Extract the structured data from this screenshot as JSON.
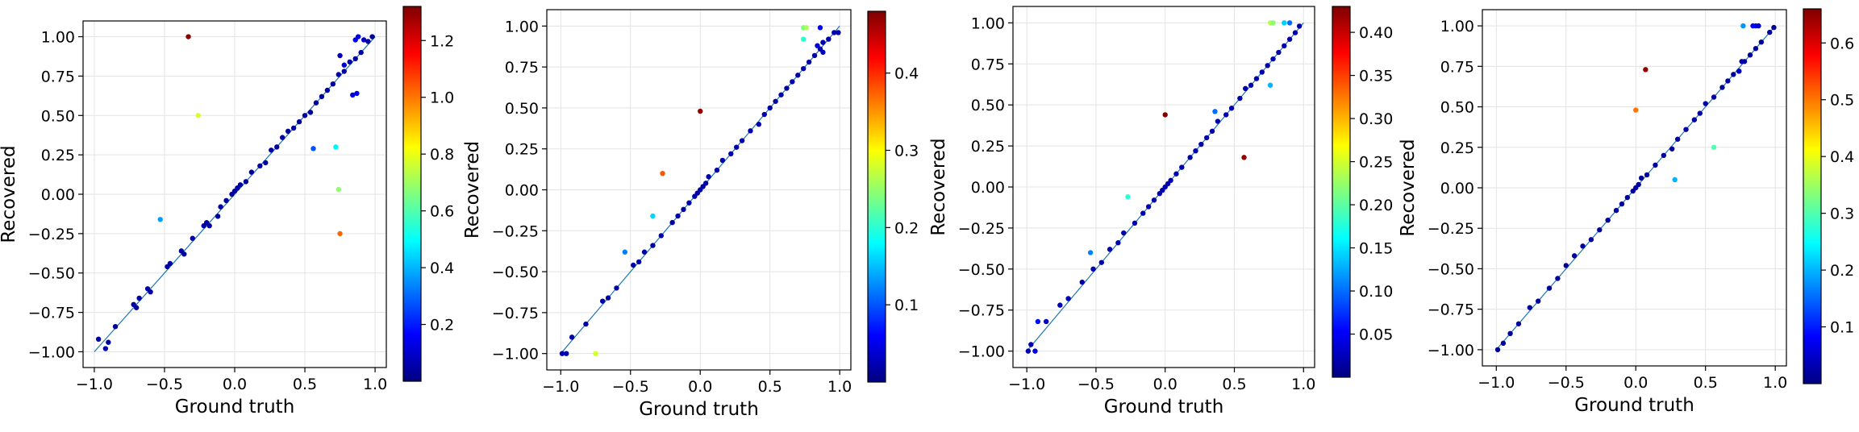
{
  "colormap": [
    "#00007f",
    "#0000ff",
    "#007fff",
    "#00ffff",
    "#7fff7f",
    "#ffff00",
    "#ff7f00",
    "#ff0000",
    "#7f0000"
  ],
  "diagonal_color": "#1f77b4",
  "chart_data": [
    {
      "type": "scatter",
      "xlabel": "Ground truth",
      "ylabel": "Recovered",
      "xlim": [
        -1.08,
        1.08
      ],
      "ylim": [
        -1.1,
        1.1
      ],
      "xticks": [
        -1.0,
        -0.5,
        0.0,
        0.5,
        1.0
      ],
      "yticks": [
        -1.0,
        -0.75,
        -0.5,
        -0.25,
        0.0,
        0.25,
        0.5,
        0.75,
        1.0
      ],
      "xtick_labels": [
        "−1.0",
        "−0.5",
        "0.0",
        "0.5",
        "1.0"
      ],
      "ytick_labels": [
        "−1.00",
        "−0.75",
        "−0.50",
        "−0.25",
        "0.00",
        "0.25",
        "0.50",
        "0.75",
        "1.00"
      ],
      "colorbar": {
        "range": [
          0.0,
          1.32
        ],
        "ticks": [
          0.2,
          0.4,
          0.6,
          0.8,
          1.0,
          1.2
        ],
        "tick_labels": [
          "0.2",
          "0.4",
          "0.6",
          "0.8",
          "1.0",
          "1.2"
        ]
      },
      "points": [
        [
          -0.97,
          -0.92,
          0.05
        ],
        [
          -0.92,
          -0.98,
          0.06
        ],
        [
          -0.9,
          -0.94,
          0.04
        ],
        [
          -0.85,
          -0.84,
          0.05
        ],
        [
          -0.72,
          -0.7,
          0.05
        ],
        [
          -0.7,
          -0.72,
          0.04
        ],
        [
          -0.68,
          -0.66,
          0.05
        ],
        [
          -0.62,
          -0.6,
          0.06
        ],
        [
          -0.6,
          -0.62,
          0.04
        ],
        [
          -0.48,
          -0.46,
          0.05
        ],
        [
          -0.46,
          -0.44,
          0.04
        ],
        [
          -0.38,
          -0.36,
          0.05
        ],
        [
          -0.36,
          -0.38,
          0.04
        ],
        [
          -0.3,
          -0.28,
          0.05
        ],
        [
          -0.22,
          -0.2,
          0.05
        ],
        [
          -0.2,
          -0.18,
          0.04
        ],
        [
          -0.18,
          -0.2,
          0.05
        ],
        [
          -0.12,
          -0.14,
          0.04
        ],
        [
          -0.1,
          -0.08,
          0.05
        ],
        [
          -0.06,
          -0.04,
          0.04
        ],
        [
          -0.02,
          0.0,
          0.05
        ],
        [
          0.0,
          0.02,
          0.04
        ],
        [
          0.02,
          0.04,
          0.05
        ],
        [
          0.04,
          0.06,
          0.04
        ],
        [
          0.08,
          0.08,
          0.05
        ],
        [
          0.12,
          0.14,
          0.04
        ],
        [
          0.18,
          0.18,
          0.05
        ],
        [
          0.22,
          0.2,
          0.04
        ],
        [
          0.26,
          0.28,
          0.05
        ],
        [
          0.3,
          0.3,
          0.04
        ],
        [
          0.34,
          0.36,
          0.05
        ],
        [
          0.38,
          0.4,
          0.04
        ],
        [
          0.42,
          0.42,
          0.05
        ],
        [
          0.46,
          0.46,
          0.04
        ],
        [
          0.5,
          0.5,
          0.05
        ],
        [
          0.54,
          0.52,
          0.04
        ],
        [
          0.58,
          0.58,
          0.05
        ],
        [
          0.62,
          0.62,
          0.04
        ],
        [
          0.66,
          0.66,
          0.05
        ],
        [
          0.7,
          0.7,
          0.04
        ],
        [
          0.74,
          0.76,
          0.05
        ],
        [
          0.78,
          0.78,
          0.04
        ],
        [
          0.82,
          0.84,
          0.05
        ],
        [
          0.86,
          0.86,
          0.04
        ],
        [
          0.9,
          0.9,
          0.05
        ],
        [
          0.86,
          0.98,
          0.15
        ],
        [
          0.88,
          1.0,
          0.12
        ],
        [
          0.92,
          0.98,
          0.1
        ],
        [
          0.95,
          0.97,
          0.05
        ],
        [
          0.98,
          1.0,
          0.04
        ],
        [
          0.75,
          0.88,
          0.08
        ],
        [
          0.78,
          0.82,
          0.1
        ],
        [
          0.84,
          0.63,
          0.12
        ],
        [
          0.87,
          0.64,
          0.13
        ],
        [
          0.56,
          0.29,
          0.27
        ],
        [
          0.72,
          0.3,
          0.48
        ],
        [
          0.74,
          0.03,
          0.68
        ],
        [
          0.75,
          -0.25,
          1.02
        ],
        [
          -0.53,
          -0.16,
          0.37
        ],
        [
          -0.26,
          0.5,
          0.77
        ],
        [
          -0.33,
          1.0,
          1.3
        ]
      ]
    },
    {
      "type": "scatter",
      "xlabel": "Ground truth",
      "ylabel": "Recovered",
      "xlim": [
        -1.1,
        1.08
      ],
      "ylim": [
        -1.1,
        1.1
      ],
      "xticks": [
        -1.0,
        -0.5,
        0.0,
        0.5,
        1.0
      ],
      "yticks": [
        -1.0,
        -0.75,
        -0.5,
        -0.25,
        0.0,
        0.25,
        0.5,
        0.75,
        1.0
      ],
      "xtick_labels": [
        "−1.0",
        "−0.5",
        "0.0",
        "0.5",
        "1.0"
      ],
      "ytick_labels": [
        "−1.00",
        "−0.75",
        "−0.50",
        "−0.25",
        "0.00",
        "0.25",
        "0.50",
        "0.75",
        "1.00"
      ],
      "colorbar": {
        "range": [
          0.0,
          0.48
        ],
        "ticks": [
          0.1,
          0.2,
          0.3,
          0.4
        ],
        "tick_labels": [
          "0.1",
          "0.2",
          "0.3",
          "0.4"
        ]
      },
      "points": [
        [
          -0.99,
          -1.0,
          0.02
        ],
        [
          -0.96,
          -1.0,
          0.02
        ],
        [
          -0.92,
          -0.9,
          0.02
        ],
        [
          -0.82,
          -0.82,
          0.02
        ],
        [
          -0.7,
          -0.68,
          0.02
        ],
        [
          -0.66,
          -0.66,
          0.02
        ],
        [
          -0.6,
          -0.6,
          0.02
        ],
        [
          -0.48,
          -0.46,
          0.02
        ],
        [
          -0.44,
          -0.44,
          0.02
        ],
        [
          -0.4,
          -0.38,
          0.02
        ],
        [
          -0.34,
          -0.34,
          0.02
        ],
        [
          -0.28,
          -0.28,
          0.02
        ],
        [
          -0.2,
          -0.2,
          0.02
        ],
        [
          -0.16,
          -0.16,
          0.02
        ],
        [
          -0.12,
          -0.12,
          0.02
        ],
        [
          -0.08,
          -0.08,
          0.02
        ],
        [
          -0.04,
          -0.04,
          0.02
        ],
        [
          -0.02,
          -0.02,
          0.02
        ],
        [
          0.0,
          0.0,
          0.02
        ],
        [
          0.02,
          0.02,
          0.02
        ],
        [
          0.04,
          0.04,
          0.02
        ],
        [
          0.06,
          0.08,
          0.02
        ],
        [
          0.12,
          0.12,
          0.02
        ],
        [
          0.16,
          0.18,
          0.02
        ],
        [
          0.22,
          0.22,
          0.02
        ],
        [
          0.26,
          0.26,
          0.02
        ],
        [
          0.3,
          0.3,
          0.02
        ],
        [
          0.36,
          0.36,
          0.02
        ],
        [
          0.42,
          0.4,
          0.02
        ],
        [
          0.46,
          0.46,
          0.02
        ],
        [
          0.5,
          0.5,
          0.02
        ],
        [
          0.54,
          0.54,
          0.02
        ],
        [
          0.58,
          0.58,
          0.02
        ],
        [
          0.62,
          0.62,
          0.02
        ],
        [
          0.66,
          0.66,
          0.02
        ],
        [
          0.7,
          0.7,
          0.02
        ],
        [
          0.74,
          0.74,
          0.02
        ],
        [
          0.78,
          0.78,
          0.02
        ],
        [
          0.82,
          0.82,
          0.02
        ],
        [
          0.86,
          0.86,
          0.02
        ],
        [
          0.88,
          0.9,
          0.02
        ],
        [
          0.92,
          0.92,
          0.02
        ],
        [
          0.96,
          0.96,
          0.02
        ],
        [
          0.99,
          0.96,
          0.02
        ],
        [
          0.84,
          0.88,
          0.04
        ],
        [
          0.88,
          0.84,
          0.03
        ],
        [
          0.74,
          0.92,
          0.2
        ],
        [
          0.74,
          0.99,
          0.24
        ],
        [
          0.76,
          0.99,
          0.26
        ],
        [
          0.86,
          0.99,
          0.05
        ],
        [
          -0.54,
          -0.38,
          0.12
        ],
        [
          -0.34,
          -0.16,
          0.16
        ],
        [
          -0.27,
          0.1,
          0.38
        ],
        [
          -0.75,
          -1.0,
          0.28
        ],
        [
          0.0,
          0.48,
          0.47
        ]
      ]
    },
    {
      "type": "scatter",
      "xlabel": "Ground truth",
      "ylabel": "Recovered",
      "xlim": [
        -1.1,
        1.08
      ],
      "ylim": [
        -1.1,
        1.1
      ],
      "xticks": [
        -1.0,
        -0.5,
        0.0,
        0.5,
        1.0
      ],
      "yticks": [
        -1.0,
        -0.75,
        -0.5,
        -0.25,
        0.0,
        0.25,
        0.5,
        0.75,
        1.0
      ],
      "xtick_labels": [
        "−1.0",
        "−0.5",
        "0.0",
        "0.5",
        "1.0"
      ],
      "ytick_labels": [
        "−1.00",
        "−0.75",
        "−0.50",
        "−0.25",
        "0.00",
        "0.25",
        "0.50",
        "0.75",
        "1.00"
      ],
      "colorbar": {
        "range": [
          0.0,
          0.43
        ],
        "ticks": [
          0.05,
          0.1,
          0.15,
          0.2,
          0.25,
          0.3,
          0.35,
          0.4
        ],
        "tick_labels": [
          "0.05",
          "0.10",
          "0.15",
          "0.20",
          "0.25",
          "0.30",
          "0.35",
          "0.40"
        ]
      },
      "points": [
        [
          -0.99,
          -1.0,
          0.02
        ],
        [
          -0.97,
          -0.96,
          0.02
        ],
        [
          -0.94,
          -1.0,
          0.04
        ],
        [
          -0.92,
          -0.82,
          0.06
        ],
        [
          -0.86,
          -0.82,
          0.03
        ],
        [
          -0.76,
          -0.72,
          0.02
        ],
        [
          -0.7,
          -0.68,
          0.02
        ],
        [
          -0.6,
          -0.58,
          0.02
        ],
        [
          -0.52,
          -0.5,
          0.02
        ],
        [
          -0.46,
          -0.46,
          0.02
        ],
        [
          -0.4,
          -0.38,
          0.02
        ],
        [
          -0.34,
          -0.34,
          0.02
        ],
        [
          -0.3,
          -0.28,
          0.02
        ],
        [
          -0.22,
          -0.22,
          0.02
        ],
        [
          -0.16,
          -0.16,
          0.02
        ],
        [
          -0.12,
          -0.12,
          0.02
        ],
        [
          -0.08,
          -0.08,
          0.02
        ],
        [
          -0.04,
          -0.04,
          0.02
        ],
        [
          -0.02,
          -0.02,
          0.02
        ],
        [
          0.0,
          0.0,
          0.02
        ],
        [
          0.02,
          0.02,
          0.02
        ],
        [
          0.04,
          0.04,
          0.02
        ],
        [
          0.08,
          0.08,
          0.02
        ],
        [
          0.12,
          0.12,
          0.02
        ],
        [
          0.18,
          0.18,
          0.02
        ],
        [
          0.22,
          0.22,
          0.02
        ],
        [
          0.26,
          0.26,
          0.02
        ],
        [
          0.3,
          0.3,
          0.02
        ],
        [
          0.34,
          0.34,
          0.02
        ],
        [
          0.38,
          0.4,
          0.02
        ],
        [
          0.44,
          0.44,
          0.02
        ],
        [
          0.48,
          0.48,
          0.02
        ],
        [
          0.54,
          0.54,
          0.02
        ],
        [
          0.58,
          0.6,
          0.02
        ],
        [
          0.62,
          0.62,
          0.02
        ],
        [
          0.66,
          0.66,
          0.02
        ],
        [
          0.7,
          0.7,
          0.02
        ],
        [
          0.74,
          0.74,
          0.02
        ],
        [
          0.78,
          0.78,
          0.02
        ],
        [
          0.82,
          0.82,
          0.02
        ],
        [
          0.86,
          0.86,
          0.02
        ],
        [
          0.9,
          0.9,
          0.02
        ],
        [
          0.94,
          0.94,
          0.02
        ],
        [
          0.97,
          0.98,
          0.02
        ],
        [
          0.76,
          1.0,
          0.24
        ],
        [
          0.78,
          1.0,
          0.22
        ],
        [
          0.86,
          1.0,
          0.14
        ],
        [
          0.9,
          1.0,
          0.1
        ],
        [
          0.76,
          0.62,
          0.13
        ],
        [
          -0.54,
          -0.4,
          0.11
        ],
        [
          -0.27,
          -0.06,
          0.18
        ],
        [
          0.36,
          0.46,
          0.1
        ],
        [
          0.57,
          0.18,
          0.42
        ],
        [
          0.0,
          0.44,
          0.43
        ]
      ]
    },
    {
      "type": "scatter",
      "xlabel": "Ground truth",
      "ylabel": "Recovered",
      "xlim": [
        -1.1,
        1.08
      ],
      "ylim": [
        -1.1,
        1.1
      ],
      "xticks": [
        -1.0,
        -0.5,
        0.0,
        0.5,
        1.0
      ],
      "yticks": [
        -1.0,
        -0.75,
        -0.5,
        -0.25,
        0.0,
        0.25,
        0.5,
        0.75,
        1.0
      ],
      "xtick_labels": [
        "−1.0",
        "−0.5",
        "0.0",
        "0.5",
        "1.0"
      ],
      "ytick_labels": [
        "−1.00",
        "−0.75",
        "−0.50",
        "−0.25",
        "0.00",
        "0.25",
        "0.50",
        "0.75",
        "1.00"
      ],
      "colorbar": {
        "range": [
          0.0,
          0.66
        ],
        "ticks": [
          0.1,
          0.2,
          0.3,
          0.4,
          0.5,
          0.6
        ],
        "tick_labels": [
          "0.1",
          "0.2",
          "0.3",
          "0.4",
          "0.5",
          "0.6"
        ]
      },
      "points": [
        [
          -0.99,
          -1.0,
          0.02
        ],
        [
          -0.95,
          -0.96,
          0.02
        ],
        [
          -0.9,
          -0.9,
          0.02
        ],
        [
          -0.84,
          -0.84,
          0.02
        ],
        [
          -0.76,
          -0.74,
          0.02
        ],
        [
          -0.7,
          -0.7,
          0.02
        ],
        [
          -0.62,
          -0.62,
          0.02
        ],
        [
          -0.56,
          -0.56,
          0.02
        ],
        [
          -0.5,
          -0.48,
          0.02
        ],
        [
          -0.44,
          -0.42,
          0.02
        ],
        [
          -0.38,
          -0.36,
          0.02
        ],
        [
          -0.32,
          -0.32,
          0.02
        ],
        [
          -0.26,
          -0.26,
          0.02
        ],
        [
          -0.2,
          -0.2,
          0.02
        ],
        [
          -0.14,
          -0.14,
          0.02
        ],
        [
          -0.1,
          -0.1,
          0.02
        ],
        [
          -0.06,
          -0.06,
          0.02
        ],
        [
          -0.02,
          -0.02,
          0.02
        ],
        [
          0.0,
          0.0,
          0.02
        ],
        [
          0.02,
          0.02,
          0.02
        ],
        [
          0.04,
          0.06,
          0.02
        ],
        [
          0.08,
          0.08,
          0.02
        ],
        [
          0.14,
          0.14,
          0.02
        ],
        [
          0.2,
          0.2,
          0.02
        ],
        [
          0.26,
          0.24,
          0.02
        ],
        [
          0.3,
          0.3,
          0.02
        ],
        [
          0.36,
          0.36,
          0.02
        ],
        [
          0.42,
          0.42,
          0.02
        ],
        [
          0.46,
          0.46,
          0.02
        ],
        [
          0.5,
          0.52,
          0.02
        ],
        [
          0.56,
          0.56,
          0.02
        ],
        [
          0.62,
          0.62,
          0.02
        ],
        [
          0.66,
          0.66,
          0.02
        ],
        [
          0.7,
          0.7,
          0.02
        ],
        [
          0.74,
          0.72,
          0.02
        ],
        [
          0.78,
          0.78,
          0.02
        ],
        [
          0.82,
          0.82,
          0.02
        ],
        [
          0.86,
          0.86,
          0.02
        ],
        [
          0.9,
          0.9,
          0.02
        ],
        [
          0.96,
          0.96,
          0.02
        ],
        [
          0.99,
          0.99,
          0.02
        ],
        [
          0.86,
          1.0,
          0.06
        ],
        [
          0.88,
          1.0,
          0.05
        ],
        [
          0.84,
          1.0,
          0.08
        ],
        [
          0.76,
          0.78,
          0.03
        ],
        [
          0.74,
          0.72,
          0.04
        ],
        [
          0.77,
          1.0,
          0.18
        ],
        [
          0.0,
          0.48,
          0.5
        ],
        [
          0.07,
          0.73,
          0.65
        ],
        [
          0.28,
          0.05,
          0.2
        ],
        [
          0.56,
          0.25,
          0.3
        ]
      ]
    }
  ]
}
